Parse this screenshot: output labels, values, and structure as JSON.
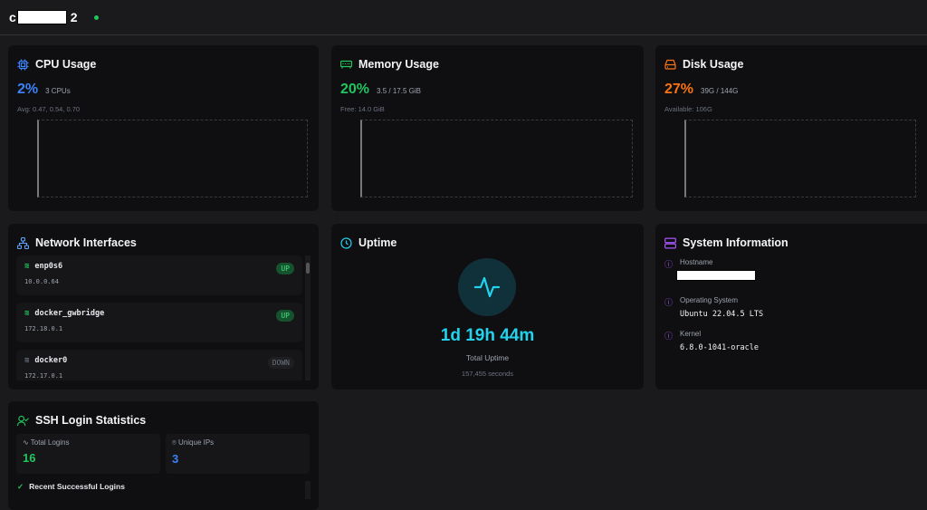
{
  "header": {
    "title_prefix": "c",
    "title_suffix": "2",
    "status": "online"
  },
  "cpu": {
    "title": "CPU Usage",
    "percent": "2%",
    "detail": "3 CPUs",
    "sub": "Avg: 0.47, 0.54, 0.70",
    "color": "#3b82f6",
    "progress": 2
  },
  "memory": {
    "title": "Memory Usage",
    "percent": "20%",
    "detail": "3.5 / 17.5 GiB",
    "sub": "Free: 14.0 GiB",
    "color": "#22c55e",
    "progress": 20
  },
  "disk": {
    "title": "Disk Usage",
    "percent": "27%",
    "detail": "39G / 144G",
    "sub": "Available: 106G",
    "color": "#f97316",
    "progress": 27
  },
  "network": {
    "title": "Network Interfaces",
    "interfaces": [
      {
        "name": "enp0s6",
        "ip": "10.0.0.64",
        "status": "UP"
      },
      {
        "name": "docker_gwbridge",
        "ip": "172.18.0.1",
        "status": "UP"
      },
      {
        "name": "docker0",
        "ip": "172.17.0.1",
        "status": "DOWN"
      }
    ]
  },
  "uptime": {
    "title": "Uptime",
    "value": "1d 19h 44m",
    "label": "Total Uptime",
    "seconds": "157,455 seconds"
  },
  "sysinfo": {
    "title": "System Information",
    "hostname_label": "Hostname",
    "os_label": "Operating System",
    "os": "Ubuntu 22.04.5 LTS",
    "kernel_label": "Kernel",
    "kernel": "6.8.0-1041-oracle"
  },
  "ssh": {
    "title": "SSH Login Statistics",
    "total_label": "Total Logins",
    "total": "16",
    "unique_label": "Unique IPs",
    "unique": "3",
    "recent_title": "Recent Successful Logins"
  }
}
